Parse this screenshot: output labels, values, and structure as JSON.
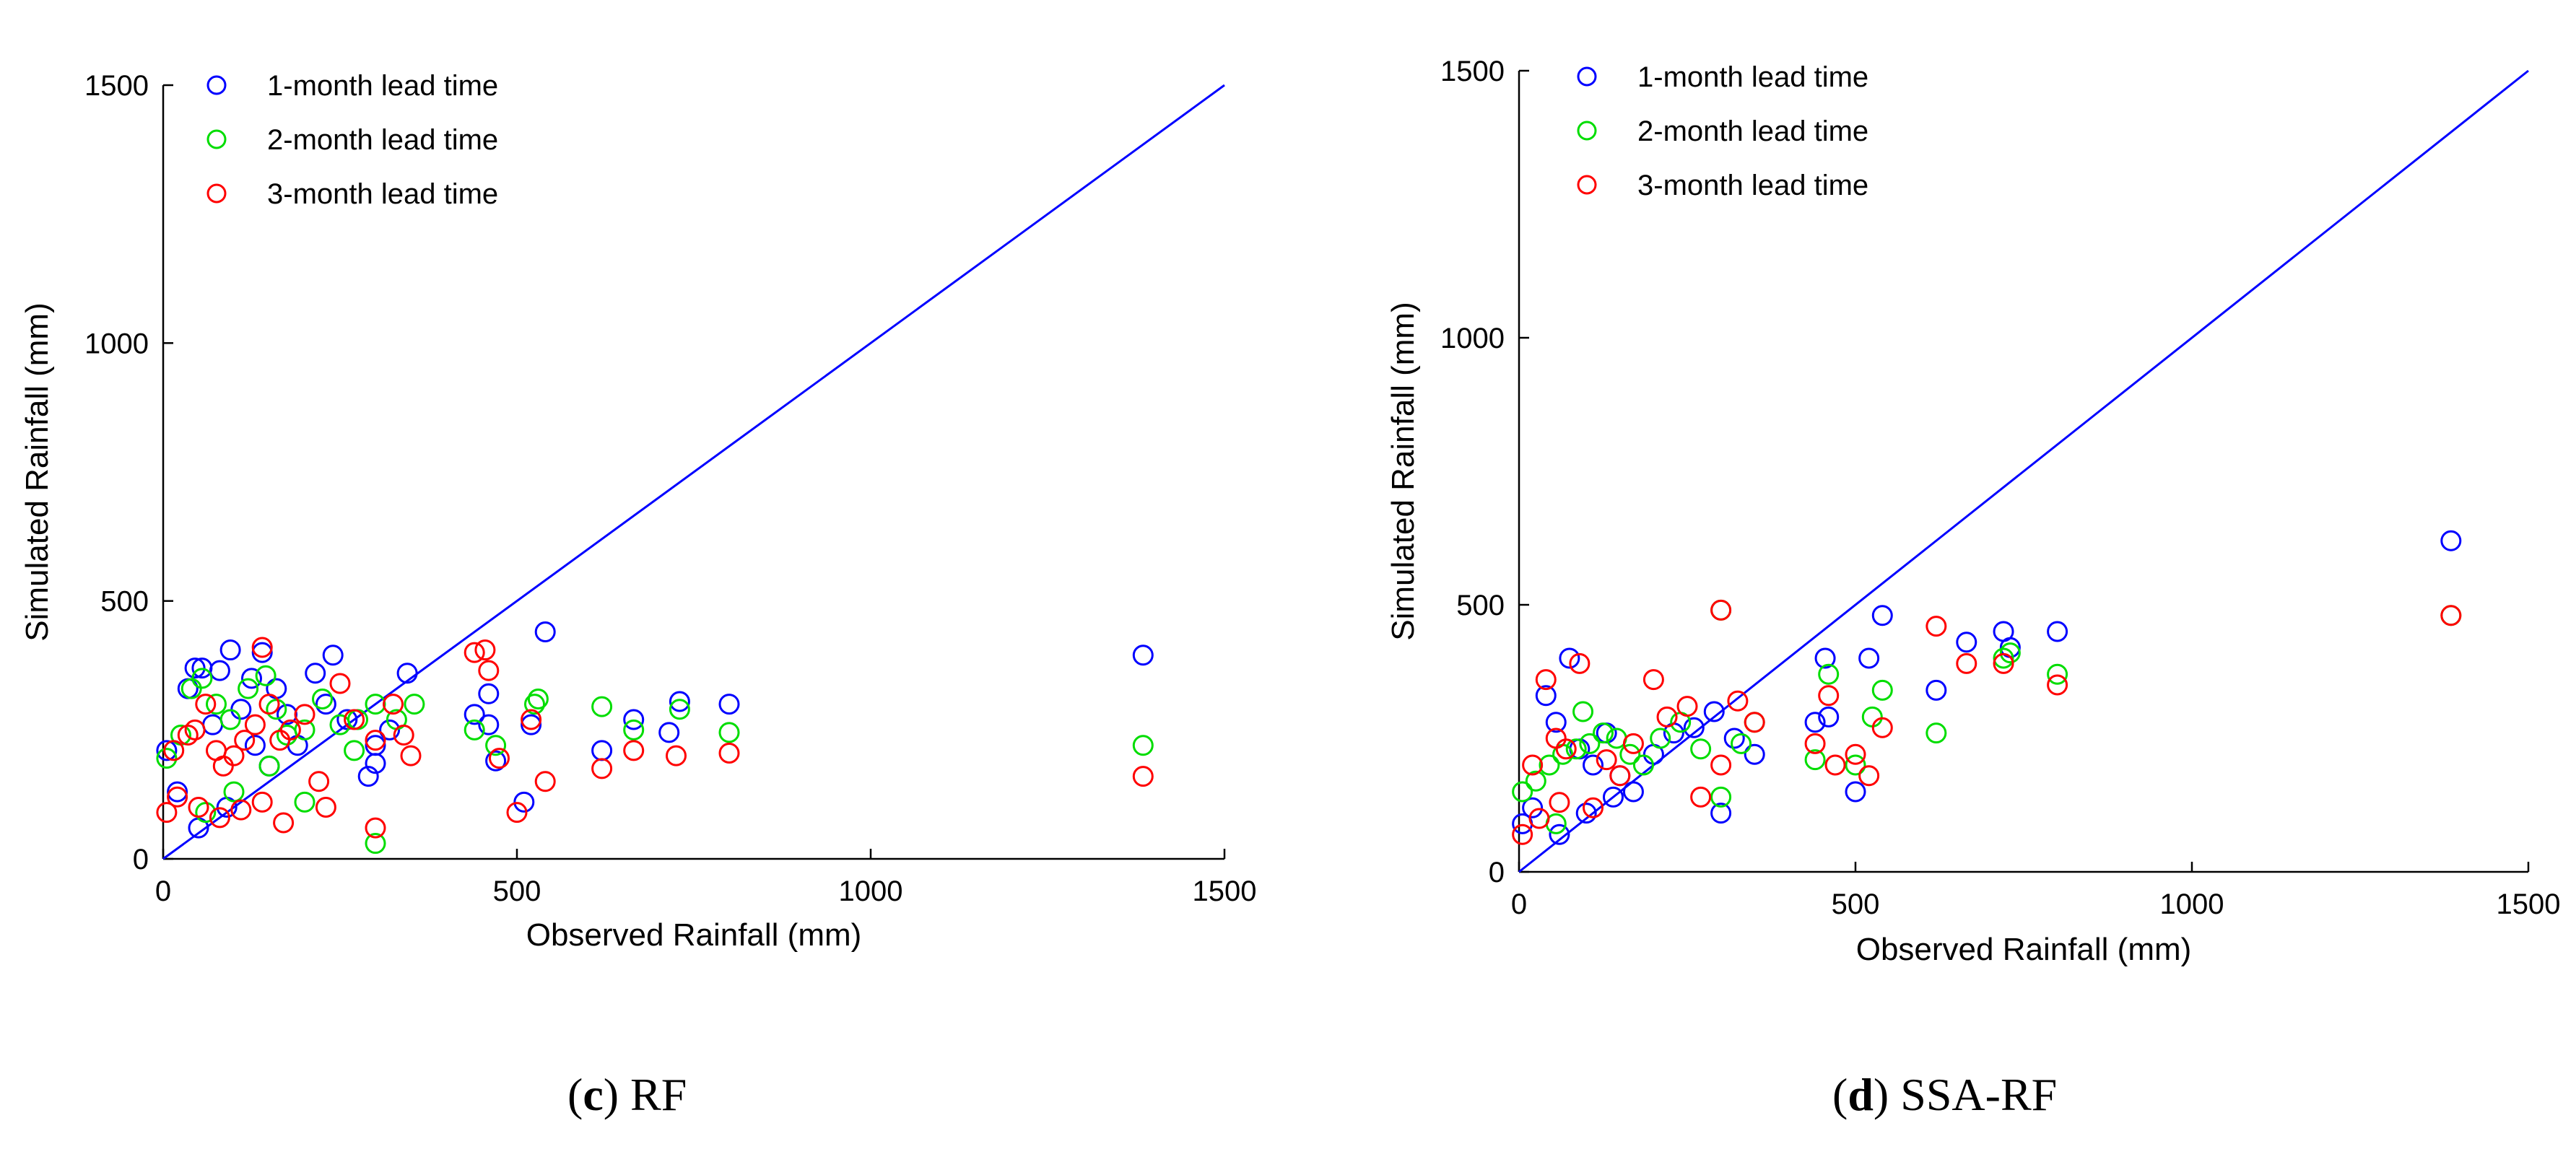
{
  "figure": {
    "panels": [
      {
        "label": "c",
        "name": "RF"
      },
      {
        "label": "d",
        "name": "SSA-RF"
      }
    ]
  },
  "chart_data": [
    {
      "type": "scatter",
      "panel": "c",
      "title": "",
      "xlabel": "Observed Rainfall (mm)",
      "ylabel": "Simulated Rainfall (mm)",
      "xlim": [
        0,
        1500
      ],
      "ylim": [
        0,
        1500
      ],
      "xticks": [
        0,
        500,
        1000,
        1500
      ],
      "yticks": [
        0,
        500,
        1000,
        1500
      ],
      "legend_position": "top-left",
      "reference_line": {
        "name": "1:1 line",
        "color": "#0000ff",
        "x": [
          0,
          1500
        ],
        "y": [
          0,
          1500
        ]
      },
      "series": [
        {
          "name": "1-month lead time",
          "color": "#0000ff",
          "x": [
            5,
            20,
            35,
            45,
            55,
            70,
            80,
            95,
            110,
            125,
            140,
            160,
            175,
            190,
            215,
            240,
            260,
            290,
            300,
            320,
            345,
            440,
            460,
            470,
            520,
            540,
            620,
            665,
            715,
            730,
            800,
            1385,
            50,
            90,
            130,
            150,
            230,
            300,
            460,
            510
          ],
          "y": [
            210,
            130,
            330,
            370,
            370,
            260,
            365,
            405,
            290,
            350,
            400,
            330,
            280,
            220,
            360,
            395,
            270,
            160,
            220,
            250,
            360,
            280,
            260,
            190,
            260,
            440,
            210,
            270,
            245,
            305,
            300,
            395,
            60,
            100,
            220,
            180,
            300,
            185,
            320,
            110
          ]
        },
        {
          "name": "2-month lead time",
          "color": "#00dd00",
          "x": [
            5,
            25,
            40,
            55,
            75,
            95,
            120,
            145,
            160,
            175,
            200,
            225,
            250,
            275,
            300,
            330,
            355,
            440,
            470,
            525,
            530,
            620,
            665,
            730,
            800,
            1385,
            60,
            100,
            150,
            300,
            200,
            270
          ],
          "y": [
            195,
            240,
            330,
            350,
            300,
            270,
            330,
            355,
            290,
            240,
            250,
            310,
            260,
            270,
            300,
            270,
            300,
            250,
            220,
            300,
            310,
            295,
            250,
            290,
            245,
            220,
            90,
            130,
            180,
            30,
            110,
            210
          ]
        },
        {
          "name": "3-month lead time",
          "color": "#ff0000",
          "x": [
            5,
            15,
            35,
            45,
            60,
            75,
            85,
            100,
            115,
            130,
            140,
            150,
            165,
            180,
            200,
            220,
            250,
            270,
            300,
            325,
            340,
            350,
            440,
            455,
            460,
            475,
            500,
            520,
            540,
            620,
            665,
            725,
            800,
            1385,
            20,
            50,
            80,
            110,
            140,
            170,
            300,
            230
          ],
          "y": [
            90,
            210,
            240,
            250,
            300,
            210,
            180,
            200,
            230,
            260,
            410,
            300,
            230,
            250,
            280,
            150,
            340,
            270,
            230,
            300,
            240,
            200,
            400,
            405,
            365,
            195,
            90,
            270,
            150,
            175,
            210,
            200,
            205,
            160,
            120,
            100,
            80,
            95,
            110,
            70,
            60,
            100
          ]
        }
      ]
    },
    {
      "type": "scatter",
      "panel": "d",
      "title": "",
      "xlabel": "Observed Rainfall (mm)",
      "ylabel": "Simulated Rainfall (mm)",
      "xlim": [
        0,
        1500
      ],
      "ylim": [
        0,
        1500
      ],
      "xticks": [
        0,
        500,
        1000,
        1500
      ],
      "yticks": [
        0,
        500,
        1000,
        1500
      ],
      "legend_position": "top-left",
      "reference_line": {
        "name": "1:1 line",
        "color": "#0000ff",
        "x": [
          0,
          1500
        ],
        "y": [
          0,
          1500
        ]
      },
      "series": [
        {
          "name": "1-month lead time",
          "color": "#0000ff",
          "x": [
            5,
            20,
            40,
            55,
            75,
            90,
            110,
            130,
            150,
            170,
            200,
            230,
            260,
            290,
            300,
            320,
            350,
            440,
            455,
            460,
            500,
            520,
            540,
            620,
            665,
            720,
            730,
            800,
            1385,
            60,
            100,
            140
          ],
          "y": [
            90,
            120,
            330,
            280,
            400,
            230,
            200,
            260,
            180,
            150,
            220,
            260,
            270,
            300,
            110,
            250,
            220,
            280,
            400,
            290,
            150,
            400,
            480,
            340,
            430,
            450,
            420,
            450,
            620,
            70,
            110,
            140
          ]
        },
        {
          "name": "2-month lead time",
          "color": "#00dd00",
          "x": [
            5,
            25,
            45,
            65,
            85,
            105,
            125,
            145,
            165,
            185,
            210,
            240,
            270,
            300,
            330,
            350,
            440,
            460,
            500,
            525,
            540,
            620,
            720,
            730,
            800,
            1385,
            55,
            95,
            300
          ],
          "y": [
            150,
            170,
            200,
            220,
            230,
            240,
            260,
            250,
            220,
            200,
            250,
            280,
            230,
            140,
            240,
            280,
            210,
            370,
            200,
            290,
            340,
            260,
            400,
            410,
            370,
            480,
            90,
            300,
            490
          ]
        },
        {
          "name": "3-month lead time",
          "color": "#ff0000",
          "x": [
            5,
            20,
            40,
            55,
            70,
            90,
            110,
            130,
            150,
            170,
            200,
            220,
            250,
            270,
            300,
            325,
            350,
            440,
            460,
            470,
            500,
            520,
            540,
            620,
            665,
            720,
            800,
            1385,
            30,
            60,
            300
          ],
          "y": [
            70,
            200,
            360,
            250,
            230,
            390,
            120,
            210,
            180,
            240,
            360,
            290,
            310,
            140,
            200,
            320,
            280,
            240,
            330,
            200,
            220,
            180,
            270,
            460,
            390,
            390,
            350,
            480,
            100,
            130,
            490
          ]
        }
      ]
    }
  ]
}
